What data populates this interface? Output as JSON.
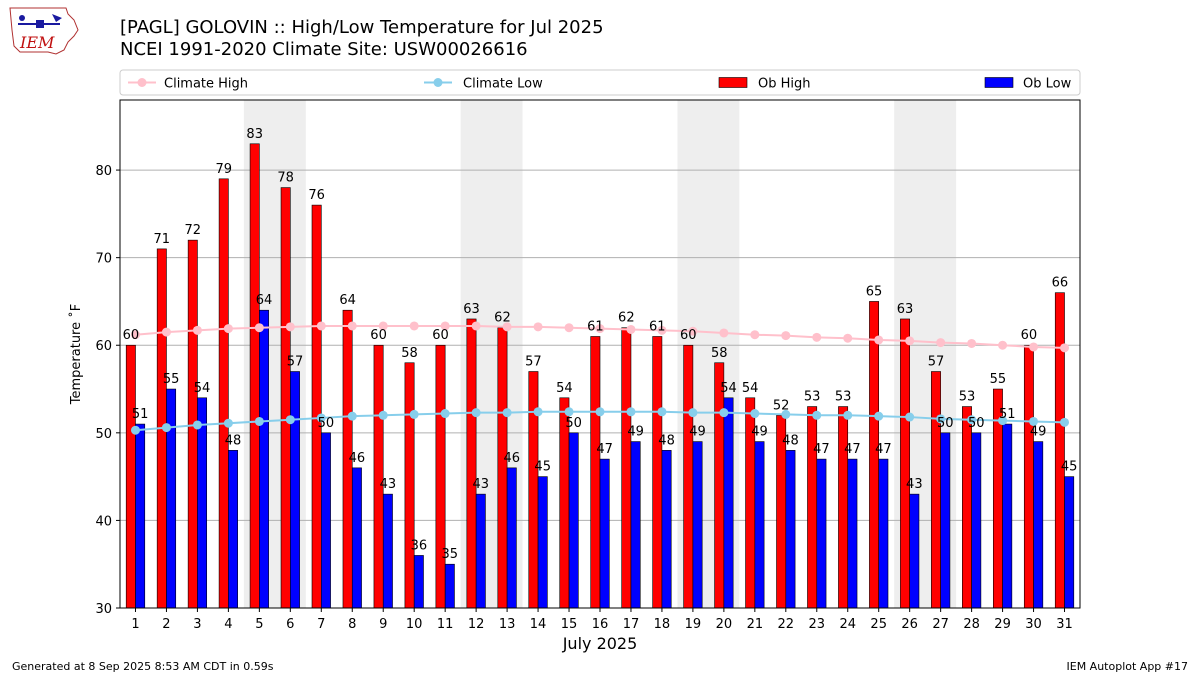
{
  "header": {
    "title_line1": "[PAGL] GOLOVIN :: High/Low Temperature for Jul 2025",
    "title_line2": "NCEI 1991-2020 Climate Site: USW00026616",
    "logo_text": "IEM"
  },
  "footer": {
    "generated": "Generated at 8 Sep 2025 8:53 AM CDT in 0.59s",
    "app": "IEM Autoplot App #17"
  },
  "colors": {
    "ob_high": "#ff0000",
    "ob_low": "#0000ff",
    "climate_high": "#ffc0cb",
    "climate_low": "#87ceeb",
    "weekend_shade": "#eeeeee"
  },
  "chart_data": {
    "type": "bar",
    "xlabel": "July 2025",
    "ylabel": "Temperature ˚F",
    "ylim": [
      30,
      88
    ],
    "xlim": [
      0.5,
      31.5
    ],
    "yticks": [
      30,
      40,
      50,
      60,
      70,
      80
    ],
    "grid": "horizontal",
    "legend_position": "top",
    "weekend_days": [
      5,
      6,
      12,
      13,
      19,
      20,
      26,
      27
    ],
    "categories": [
      "1",
      "2",
      "3",
      "4",
      "5",
      "6",
      "7",
      "8",
      "9",
      "10",
      "11",
      "12",
      "13",
      "14",
      "15",
      "16",
      "17",
      "18",
      "19",
      "20",
      "21",
      "22",
      "23",
      "24",
      "25",
      "26",
      "27",
      "28",
      "29",
      "30",
      "31"
    ],
    "series": [
      {
        "name": "Ob High",
        "kind": "bar",
        "values": [
          60,
          71,
          72,
          79,
          83,
          78,
          76,
          64,
          60,
          58,
          60,
          63,
          62,
          57,
          54,
          61,
          62,
          61,
          60,
          58,
          54,
          52,
          53,
          53,
          65,
          63,
          57,
          53,
          55,
          60,
          66
        ]
      },
      {
        "name": "Ob Low",
        "kind": "bar",
        "values": [
          51,
          55,
          54,
          48,
          64,
          57,
          50,
          46,
          43,
          36,
          35,
          43,
          46,
          45,
          50,
          47,
          49,
          48,
          49,
          54,
          49,
          48,
          47,
          47,
          47,
          43,
          50,
          50,
          51,
          49,
          45
        ]
      },
      {
        "name": "Climate High",
        "kind": "line",
        "values": [
          61.2,
          61.5,
          61.7,
          61.9,
          62.0,
          62.1,
          62.2,
          62.2,
          62.2,
          62.2,
          62.2,
          62.2,
          62.1,
          62.1,
          62.0,
          61.9,
          61.8,
          61.7,
          61.6,
          61.4,
          61.2,
          61.1,
          60.9,
          60.8,
          60.6,
          60.5,
          60.3,
          60.2,
          60.0,
          59.8,
          59.7
        ]
      },
      {
        "name": "Climate Low",
        "kind": "line",
        "values": [
          50.3,
          50.6,
          50.9,
          51.1,
          51.3,
          51.5,
          51.7,
          51.9,
          52.0,
          52.1,
          52.2,
          52.3,
          52.3,
          52.4,
          52.4,
          52.4,
          52.4,
          52.4,
          52.3,
          52.3,
          52.2,
          52.1,
          52.0,
          52.0,
          51.9,
          51.8,
          51.6,
          51.5,
          51.4,
          51.3,
          51.2
        ]
      }
    ]
  }
}
